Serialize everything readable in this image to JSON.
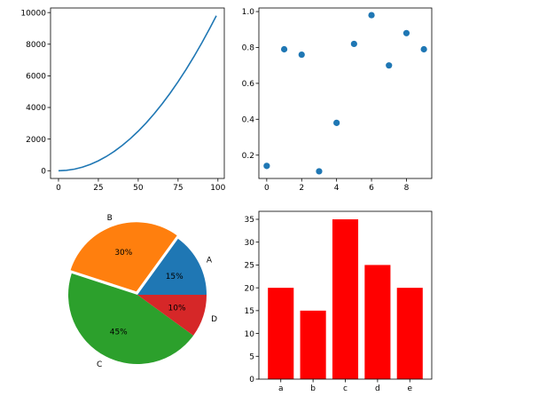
{
  "chart_data": [
    {
      "type": "line",
      "x": [
        0,
        5,
        10,
        15,
        20,
        25,
        30,
        35,
        40,
        45,
        50,
        55,
        60,
        65,
        70,
        75,
        80,
        85,
        90,
        95,
        99
      ],
      "series": [
        {
          "values": [
            0,
            25,
            100,
            225,
            400,
            625,
            900,
            1225,
            1600,
            2025,
            2500,
            3025,
            3600,
            4225,
            4900,
            5625,
            6400,
            7225,
            8100,
            9025,
            9801
          ],
          "color": "#1f77b4"
        }
      ],
      "xlim": [
        -5,
        104
      ],
      "ylim": [
        -490,
        10290
      ],
      "xticks": [
        0,
        25,
        50,
        75,
        100
      ],
      "xtick_labels": [
        "0",
        "25",
        "50",
        "75",
        "100"
      ],
      "yticks": [
        0,
        2000,
        4000,
        6000,
        8000,
        10000
      ],
      "ytick_labels": [
        "0",
        "2000",
        "4000",
        "6000",
        "8000",
        "10000"
      ],
      "grid": false
    },
    {
      "type": "scatter",
      "x": [
        0,
        1,
        2,
        3,
        4,
        5,
        6,
        7,
        8,
        9
      ],
      "series": [
        {
          "values": [
            0.14,
            0.79,
            0.76,
            0.11,
            0.38,
            0.82,
            0.98,
            0.7,
            0.88,
            0.79
          ],
          "color": "#1f77b4"
        }
      ],
      "xlim": [
        -0.45,
        9.45
      ],
      "ylim": [
        0.07,
        1.02
      ],
      "xticks": [
        0,
        2,
        4,
        6,
        8
      ],
      "xtick_labels": [
        "0",
        "2",
        "4",
        "6",
        "8"
      ],
      "yticks": [
        0.2,
        0.4,
        0.6,
        0.8,
        1.0
      ],
      "ytick_labels": [
        "0.2",
        "0.4",
        "0.6",
        "0.8",
        "1.0"
      ],
      "grid": false
    },
    {
      "type": "pie",
      "labels": [
        "A",
        "B",
        "C",
        "D"
      ],
      "values": [
        15,
        30,
        45,
        10
      ],
      "autopct_labels": [
        "15%",
        "30%",
        "45%",
        "10%"
      ],
      "colors": [
        "#1f77b4",
        "#ff7f0e",
        "#2ca02c",
        "#d62728"
      ],
      "explode": [
        0,
        0.05,
        0,
        0
      ],
      "counterclock": true,
      "startangle": 0
    },
    {
      "type": "bar",
      "categories": [
        "a",
        "b",
        "c",
        "d",
        "e"
      ],
      "values": [
        20,
        15,
        35,
        25,
        20
      ],
      "color": "#ff0000",
      "ylim": [
        0,
        36.75
      ],
      "yticks": [
        0,
        5,
        10,
        15,
        20,
        25,
        30,
        35
      ],
      "ytick_labels": [
        "0",
        "5",
        "10",
        "15",
        "20",
        "25",
        "30",
        "35"
      ],
      "grid": false
    }
  ]
}
